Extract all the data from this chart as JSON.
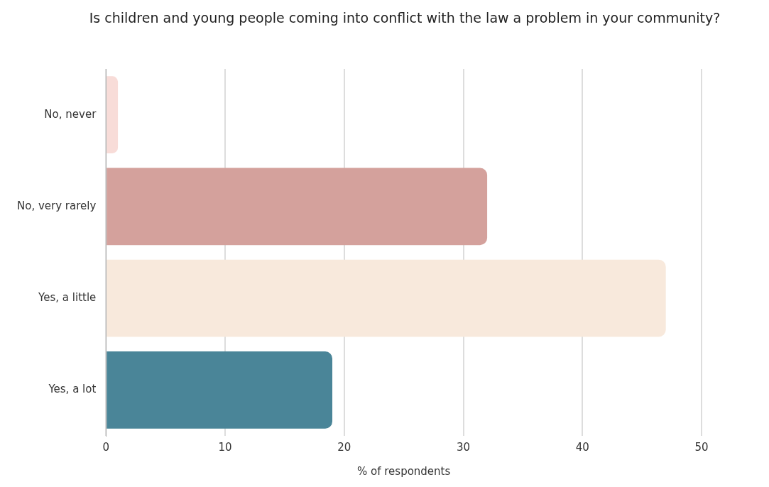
{
  "chart_data": {
    "type": "bar",
    "orientation": "horizontal",
    "title": "Is children and young people coming into conflict with the law a problem in your community?",
    "xlabel": "% of respondents",
    "categories": [
      "No, never",
      "No, very rarely",
      "Yes, a little",
      "Yes, a lot"
    ],
    "values": [
      1,
      32,
      47,
      19
    ],
    "colors": [
      "#f8dcd8",
      "#d4a19c",
      "#f8e9dc",
      "#4a8598"
    ],
    "xlim": [
      0,
      50
    ],
    "xticks": [
      0,
      10,
      20,
      30,
      40,
      50
    ],
    "grid": "x",
    "legend": false
  }
}
